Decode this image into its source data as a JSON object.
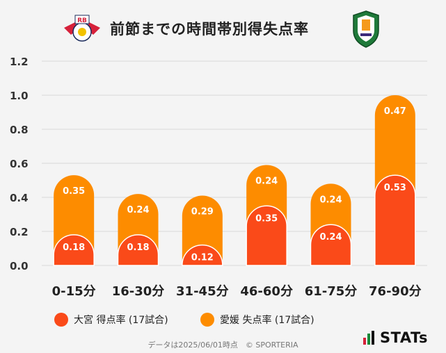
{
  "title": "前節までの時間帯別得失点率",
  "chart_data": {
    "type": "bar",
    "stacked": true,
    "categories": [
      "0-15分",
      "16-30分",
      "31-45分",
      "46-60分",
      "61-75分",
      "76-90分"
    ],
    "series": [
      {
        "name": "大宮 得点率 (17試合)",
        "color": "#fa4a19",
        "values": [
          0.18,
          0.18,
          0.12,
          0.35,
          0.24,
          0.53
        ]
      },
      {
        "name": "愛媛 失点率 (17試合)",
        "color": "#fd8c00",
        "values": [
          0.35,
          0.24,
          0.29,
          0.24,
          0.24,
          0.47
        ]
      }
    ],
    "ylim": [
      0,
      1.2
    ],
    "yticks": [
      "0.0",
      "0.2",
      "0.4",
      "0.6",
      "0.8",
      "1.0",
      "1.2"
    ],
    "grid": true,
    "legend_position": "bottom"
  },
  "footer": "データは2025/06/01時点　© SPORTERIA",
  "brand": "STATs",
  "logos": {
    "left": "RB",
    "right_icon": "ehime-fc-crest-icon",
    "left_icon": "rb-omiya-crest-icon"
  }
}
